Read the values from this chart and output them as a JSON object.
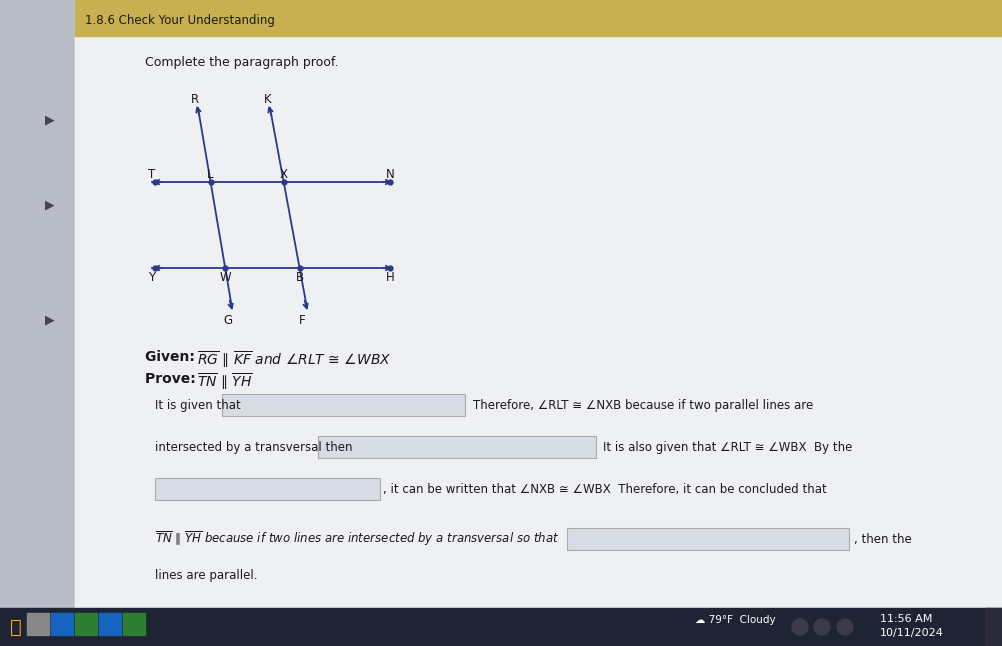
{
  "bg_color": "#e8eaed",
  "header_text": "1.8.6 Check Your Understanding",
  "section_title": "Complete the paragraph proof.",
  "line1_pre": "It is given that",
  "line1_post": "Therefore, ∠RLT ≅ ∠NXB because if two parallel lines are",
  "line2_pre": "intersected by a transversal then",
  "line2_post": "It is also given that ∠RLT ≅ ∠WBX  By the",
  "line3_post": ", it can be written that ∠NXB ≅ ∠WBX  Therefore, it can be concluded that",
  "line4_pre": "TN ∥ YH because if two lines are intersected by a transversal so that",
  "line4_post": ", then the",
  "line5": "lines are parallel.",
  "time_text": "11:56 AM",
  "date_text": "10/11/2024",
  "weather_text": "☁ 79°F  Cloudy",
  "sidebar_color": "#b8bcc4",
  "top_bar_color": "#c8b050",
  "line_color": "#2a3a8a",
  "box_color": "#d8dce4",
  "border_color": "#aaaaaa",
  "content_bg": "#eaecf0",
  "taskbar_color": "#1e2433"
}
